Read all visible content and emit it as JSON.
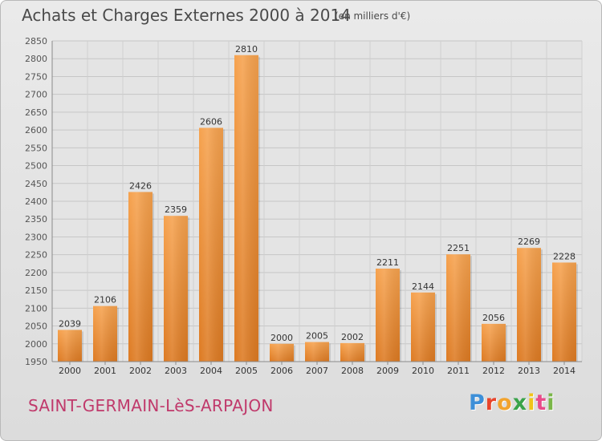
{
  "header": {
    "title": "Achats et Charges Externes 2000 à 2014",
    "subtitle": "(en milliers d'€)"
  },
  "footer": {
    "commune": "SAINT-GERMAIN-LèS-ARPAJON",
    "logo_letters": [
      "P",
      "r",
      "o",
      "x",
      "i",
      "t",
      "i"
    ],
    "logo_colors": [
      "#3d8fd8",
      "#e8452c",
      "#f2a32d",
      "#3aa34a",
      "#f0c419",
      "#e84b8a",
      "#7ab648"
    ]
  },
  "chart_data": {
    "type": "bar",
    "title": "Achats et Charges Externes 2000 à 2014",
    "unit": "(en milliers d'€)",
    "categories": [
      "2000",
      "2001",
      "2002",
      "2003",
      "2004",
      "2005",
      "2006",
      "2007",
      "2008",
      "2009",
      "2010",
      "2011",
      "2012",
      "2013",
      "2014"
    ],
    "values": [
      2039,
      2106,
      2426,
      2359,
      2606,
      2810,
      2000,
      2005,
      2002,
      2211,
      2144,
      2251,
      2056,
      2269,
      2228
    ],
    "ylim": [
      1950,
      2850
    ],
    "yticks": [
      1950,
      2000,
      2050,
      2100,
      2150,
      2200,
      2250,
      2300,
      2350,
      2400,
      2450,
      2500,
      2550,
      2600,
      2650,
      2700,
      2750,
      2800,
      2850
    ],
    "grid": true,
    "bar_color_top": "#f6a24e",
    "bar_color_bottom": "#dd7a22"
  }
}
